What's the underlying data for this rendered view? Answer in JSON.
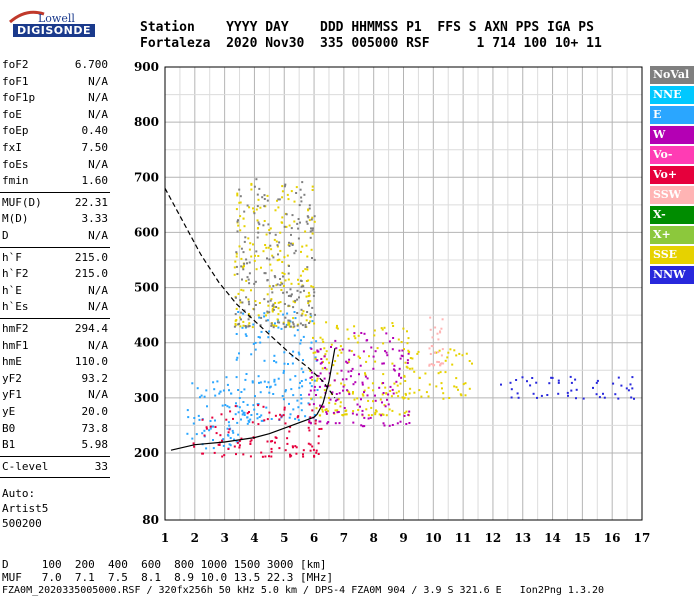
{
  "logo": {
    "brand": "Lowell",
    "product": "DIGISONDE"
  },
  "header": {
    "line1": "Station    YYYY DAY    DDD HHMMSS P1  FFS S AXN PPS IGA PS",
    "line2": "Fortaleza  2020 Nov30  335 005000 RSF      1 714 100 10+ 11"
  },
  "params": {
    "group1": [
      {
        "k": "foF2",
        "v": "6.700"
      },
      {
        "k": "foF1",
        "v": "N/A"
      },
      {
        "k": "foF1p",
        "v": "N/A"
      },
      {
        "k": "foE",
        "v": "N/A"
      },
      {
        "k": "foEp",
        "v": "0.40"
      },
      {
        "k": "fxI",
        "v": "7.50"
      },
      {
        "k": "foEs",
        "v": "N/A"
      },
      {
        "k": "fmin",
        "v": "1.60"
      }
    ],
    "group2": [
      {
        "k": "MUF(D)",
        "v": "22.31"
      },
      {
        "k": "M(D)",
        "v": "3.33"
      },
      {
        "k": "D",
        "v": "N/A"
      }
    ],
    "group3": [
      {
        "k": "h`F",
        "v": "215.0"
      },
      {
        "k": "h`F2",
        "v": "215.0"
      },
      {
        "k": "h`E",
        "v": "N/A"
      },
      {
        "k": "h`Es",
        "v": "N/A"
      }
    ],
    "group4": [
      {
        "k": "hmF2",
        "v": "294.4"
      },
      {
        "k": "hmF1",
        "v": "N/A"
      },
      {
        "k": "hmE",
        "v": "110.0"
      },
      {
        "k": "yF2",
        "v": "93.2"
      },
      {
        "k": "yF1",
        "v": "N/A"
      },
      {
        "k": "yE",
        "v": "20.0"
      },
      {
        "k": "B0",
        "v": "73.8"
      },
      {
        "k": "B1",
        "v": "5.98"
      }
    ],
    "group5": [
      {
        "k": "C-level",
        "v": "33"
      }
    ],
    "auto": [
      "Auto:",
      "Artist5",
      "500200"
    ]
  },
  "footer": {
    "d_line": "D     100  200  400  600  800 1000 1500 3000 [km]",
    "muf_line": "MUF   7.0  7.1  7.5  8.1  8.9 10.0 13.5 22.3 [MHz]",
    "file_line": "FZA0M_2020335005000.RSF / 320fx256h 50 kHz 5.0 km / DPS-4 FZA0M 904 / 3.9 S 321.6 E   Ion2Png 1.3.20"
  },
  "legend": [
    {
      "label": "NoVal",
      "color": "#7f7f7f"
    },
    {
      "label": "NNE",
      "color": "#00c8ff"
    },
    {
      "label": "E",
      "color": "#2aa6ff"
    },
    {
      "label": "W",
      "color": "#b400b4"
    },
    {
      "label": "Vo-",
      "color": "#ff3cb4"
    },
    {
      "label": "Vo+",
      "color": "#e6003c"
    },
    {
      "label": "SSW",
      "color": "#ffb4b4"
    },
    {
      "label": "X-",
      "color": "#008c00"
    },
    {
      "label": "X+",
      "color": "#8cc83c"
    },
    {
      "label": "SSE",
      "color": "#e6d200"
    },
    {
      "label": "NNW",
      "color": "#2828dc"
    }
  ],
  "chart_data": {
    "type": "scatter",
    "xlim": [
      1,
      17
    ],
    "ylim": [
      80,
      900
    ],
    "x_ticks": [
      "1",
      "2",
      "3",
      "4",
      "5",
      "6",
      "7",
      "8",
      "9",
      "10",
      "11",
      "12",
      "13",
      "14",
      "15",
      "16",
      "17"
    ],
    "y_ticks": [
      "80",
      "200",
      "300",
      "400",
      "500",
      "600",
      "700",
      "800",
      "900"
    ],
    "grid": true,
    "legend_position": "right",
    "virtual_height_trace": {
      "x": [
        1.2,
        2,
        3,
        4,
        4.5,
        5,
        5.5,
        6,
        6.1,
        6.3,
        6.5,
        6.7
      ],
      "y": [
        205,
        215,
        220,
        228,
        235,
        245,
        255,
        265,
        270,
        290,
        330,
        390
      ]
    },
    "profile_trace": {
      "x": [
        1,
        1.6,
        2.2,
        2.8,
        3.4,
        4,
        4.6,
        5.2,
        5.8,
        6.3,
        6.7
      ],
      "y": [
        680,
        620,
        560,
        510,
        470,
        440,
        410,
        380,
        355,
        330,
        300
      ]
    },
    "echo_regions": [
      {
        "x_range": [
          1.7,
          3.8
        ],
        "y_range": [
          210,
          340
        ],
        "mode": "E"
      },
      {
        "x_range": [
          3.3,
          6.1
        ],
        "y_range": [
          260,
          460
        ],
        "mode": "E"
      },
      {
        "x_range": [
          1.9,
          6.3
        ],
        "y_range": [
          195,
          290
        ],
        "mode": "Vo+"
      },
      {
        "x_range": [
          3.3,
          6.0
        ],
        "y_range": [
          430,
          700
        ],
        "mode": "SSE"
      },
      {
        "x_range": [
          3.3,
          6.0
        ],
        "y_range": [
          430,
          700
        ],
        "mode": "NoVal"
      },
      {
        "x_range": [
          5.8,
          9.2
        ],
        "y_range": [
          270,
          440
        ],
        "mode": "SSE"
      },
      {
        "x_range": [
          5.8,
          9.2
        ],
        "y_range": [
          250,
          420
        ],
        "mode": "W"
      },
      {
        "x_range": [
          9.0,
          11.3
        ],
        "y_range": [
          300,
          390
        ],
        "mode": "SSE"
      },
      {
        "x_range": [
          9.8,
          10.3
        ],
        "y_range": [
          360,
          450
        ],
        "mode": "SSW"
      },
      {
        "x_range": [
          12.2,
          16.8
        ],
        "y_range": [
          300,
          340
        ],
        "mode": "NNW"
      }
    ]
  }
}
